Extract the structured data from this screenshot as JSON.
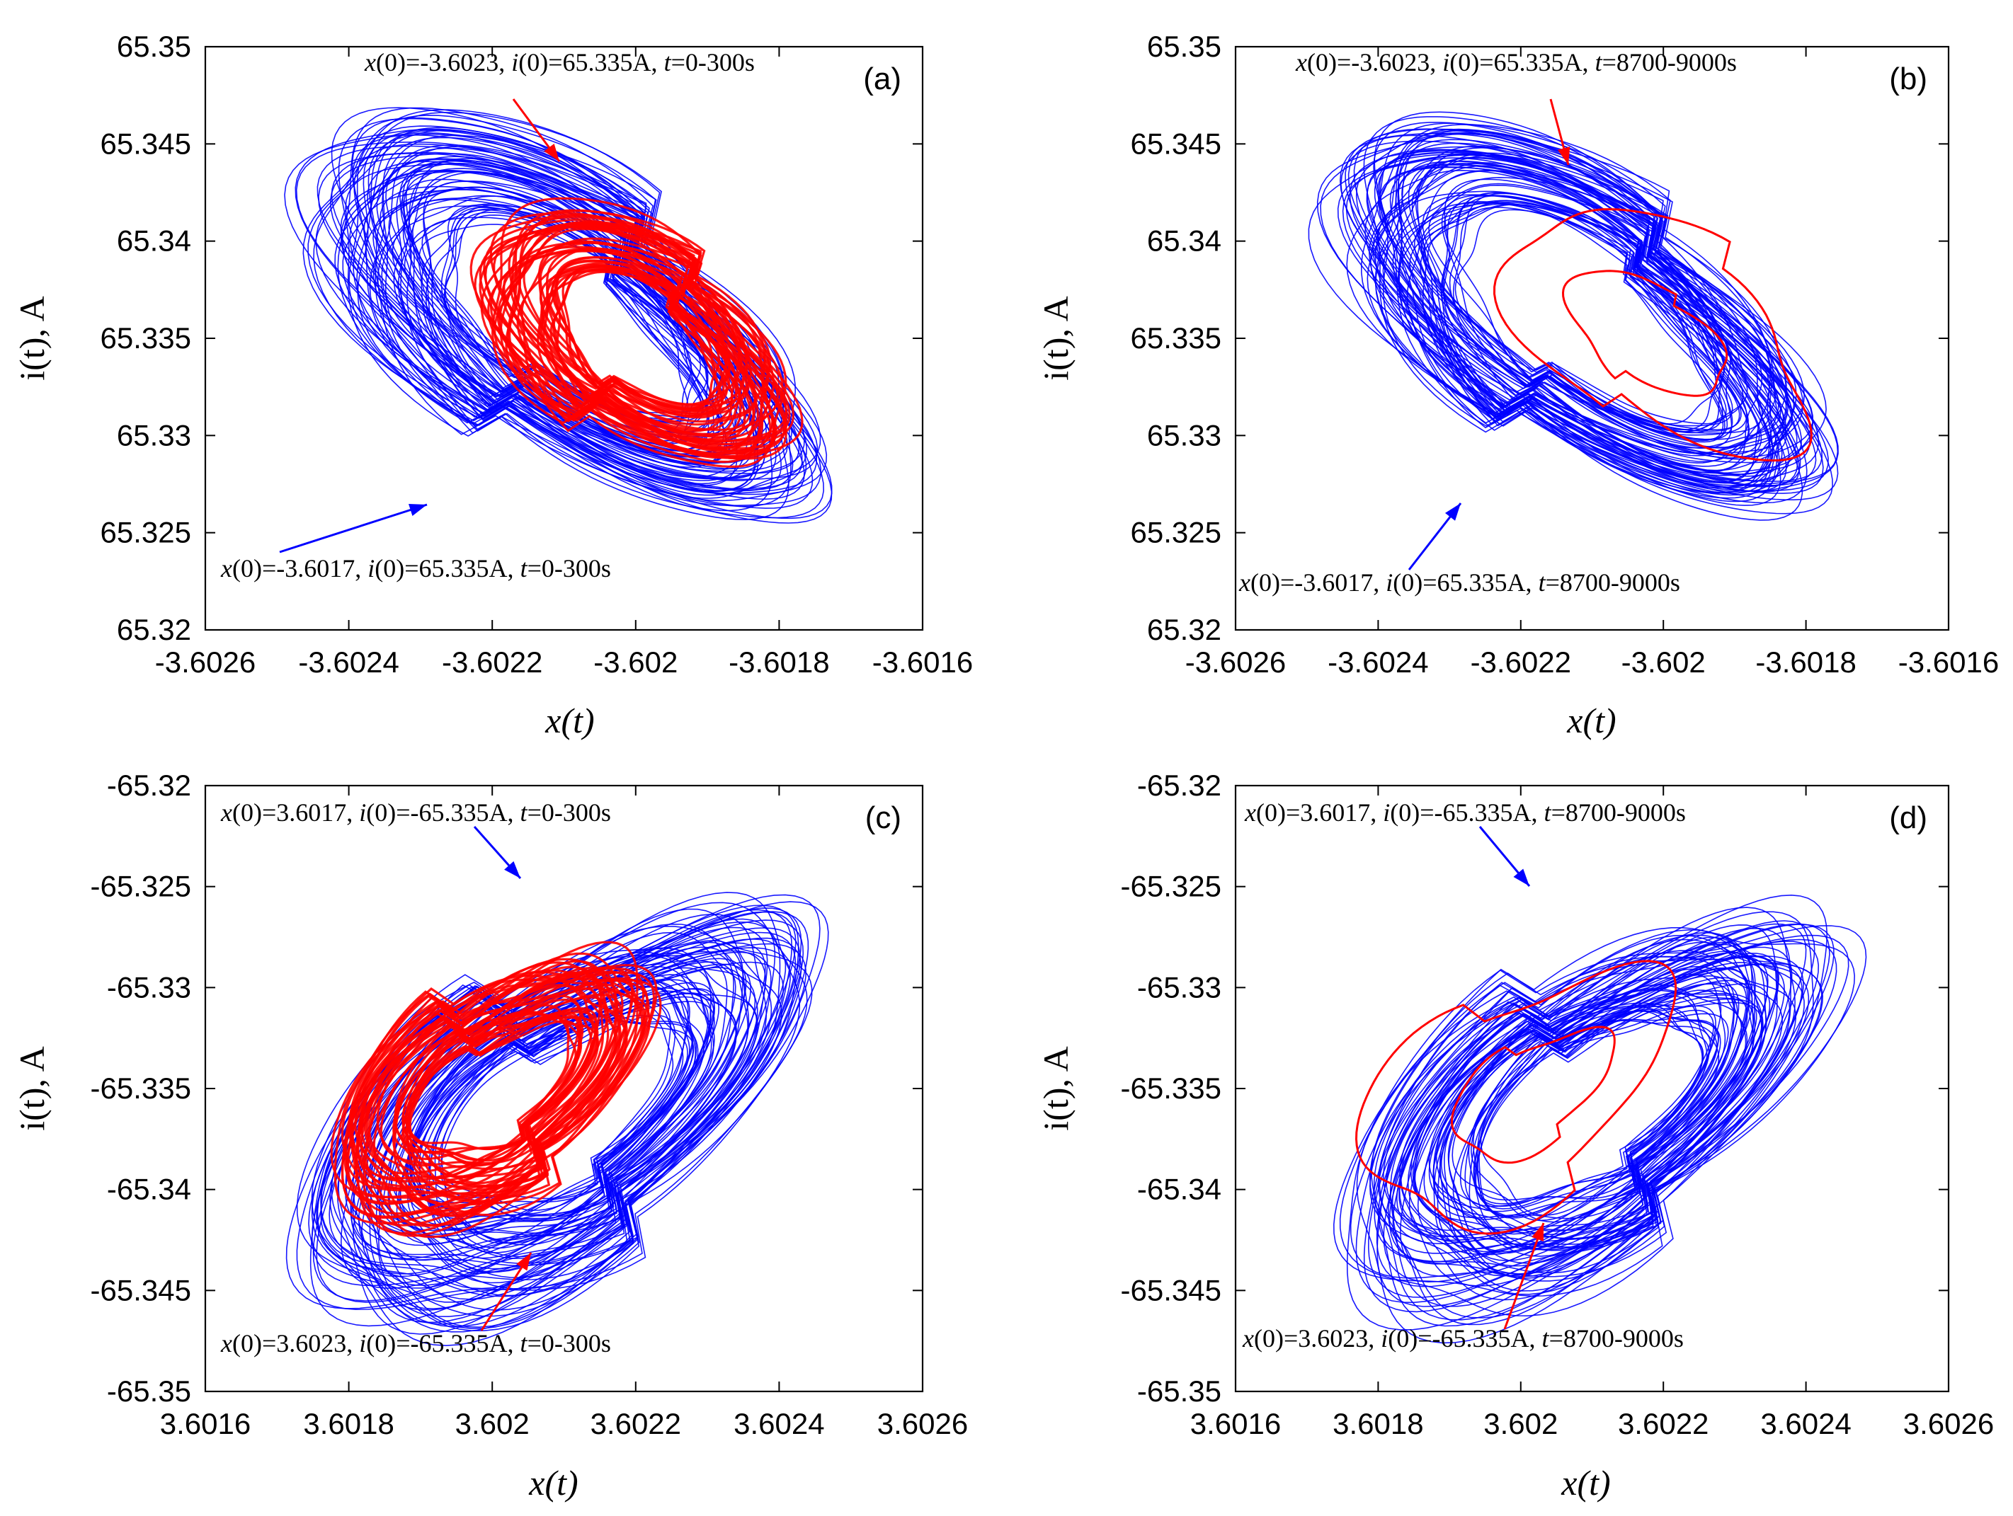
{
  "chart_data": [
    {
      "type": "line",
      "panel_label": "(a)",
      "xlabel": "x(t)",
      "ylabel": "i(t), A",
      "xlim": [
        -3.6026,
        -3.6016
      ],
      "ylim": [
        65.32,
        65.35
      ],
      "x_tick_labels": [
        "-3.6026",
        "-3.6024",
        "-3.6022",
        "-3.602",
        "-3.6018",
        "-3.6016"
      ],
      "y_tick_labels": [
        "65.32",
        "65.325",
        "65.33",
        "65.335",
        "65.34",
        "65.345",
        "65.35"
      ],
      "series": [
        {
          "name": "x(0)=-3.6017, i(0)=65.335A, t=0-300s",
          "color": "#0000ff",
          "kind": "chaotic attractor",
          "outer": {
            "xmin": -3.60252,
            "xmax": -3.60167,
            "ymin": 65.3248,
            "ymax": 65.3469
          },
          "hole": {
            "xmin": -3.60237,
            "xmax": -3.60196,
            "ymin": 65.3312,
            "ymax": 65.3405
          }
        },
        {
          "name": "x(0)=-3.6023, i(0)=65.335A, t=0-300s",
          "color": "#ff0000",
          "kind": "transient trajectory",
          "outer": {
            "xmin": -3.60222,
            "xmax": -3.60177,
            "ymin": 65.3266,
            "ymax": 65.3431
          },
          "hole": {
            "xmin": -3.60217,
            "xmax": -3.60197,
            "ymin": 65.3313,
            "ymax": 65.3396
          }
        }
      ],
      "annotations": [
        {
          "x0": "-3.6023",
          "i0": "65.335A",
          "t": "0-300s",
          "color": "#ff0000"
        },
        {
          "x0": "-3.6017",
          "i0": "65.335A",
          "t": "0-300s",
          "color": "#0000ff"
        }
      ]
    },
    {
      "type": "line",
      "panel_label": "(b)",
      "xlabel": "x(t)",
      "ylabel": "i(t), A",
      "xlim": [
        -3.6026,
        -3.6016
      ],
      "ylim": [
        65.32,
        65.35
      ],
      "x_tick_labels": [
        "-3.6026",
        "-3.6024",
        "-3.6022",
        "-3.602",
        "-3.6018",
        "-3.6016"
      ],
      "y_tick_labels": [
        "65.32",
        "65.325",
        "65.33",
        "65.335",
        "65.34",
        "65.345",
        "65.35"
      ],
      "series": [
        {
          "name": "x(0)=-3.6017, i(0)=65.335A, t=8700-9000s",
          "color": "#0000ff",
          "kind": "chaotic attractor",
          "outer": {
            "xmin": -3.60253,
            "xmax": -3.60169,
            "ymin": 65.3249,
            "ymax": 65.3469
          },
          "hole": {
            "xmin": -3.60238,
            "xmax": -3.60196,
            "ymin": 65.3312,
            "ymax": 65.3406
          }
        },
        {
          "name": "x(0)=-3.6023, i(0)=65.335A, t=8700-9000s",
          "color": "#ff0000",
          "kind": "period-1 limit cycle",
          "outer": {
            "xmin": -3.60222,
            "xmax": -3.60178,
            "ymin": 65.3273,
            "ymax": 65.343
          },
          "hole": {
            "xmin": -3.60216,
            "xmax": -3.60198,
            "ymin": 65.3315,
            "ymax": 65.3394
          }
        }
      ],
      "annotations": [
        {
          "x0": "-3.6023",
          "i0": "65.335A",
          "t": "8700-9000s",
          "color": "#ff0000"
        },
        {
          "x0": "-3.6017",
          "i0": "65.335A",
          "t": "8700-9000s",
          "color": "#0000ff"
        }
      ]
    },
    {
      "type": "line",
      "panel_label": "(c)",
      "xlabel": "x(t)",
      "ylabel": "i(t), A",
      "xlim": [
        3.6016,
        3.6026
      ],
      "ylim": [
        -65.35,
        -65.32
      ],
      "x_tick_labels": [
        "3.6016",
        "3.6018",
        "3.602",
        "3.6022",
        "3.6024",
        "3.6026"
      ],
      "y_tick_labels": [
        "-65.35",
        "-65.345",
        "-65.34",
        "-65.335",
        "-65.33",
        "-65.325",
        "-65.32"
      ],
      "series": [
        {
          "name": "x(0)=3.6017, i(0)=-65.335A, t=0-300s",
          "color": "#0000ff",
          "kind": "chaotic attractor",
          "outer": {
            "xmin": 3.60167,
            "xmax": 3.60252,
            "ymin": -65.3474,
            "ymax": -65.3248
          },
          "hole": {
            "xmin": 3.60203,
            "xmax": 3.60237,
            "ymin": -65.3406,
            "ymax": -65.3313
          }
        },
        {
          "name": "x(0)=3.6023, i(0)=-65.335A, t=0-300s",
          "color": "#ff0000",
          "kind": "transient trajectory",
          "outer": {
            "xmin": 3.60178,
            "xmax": 3.60223,
            "ymin": -65.3432,
            "ymax": -65.3266
          },
          "hole": {
            "xmin": 3.60203,
            "xmax": 3.60221,
            "ymin": -65.3396,
            "ymax": -65.3313
          }
        }
      ],
      "annotations": [
        {
          "x0": "3.6017",
          "i0": "-65.335A",
          "t": "0-300s",
          "color": "#0000ff"
        },
        {
          "x0": "3.6023",
          "i0": "-65.335A",
          "t": "0-300s",
          "color": "#ff0000"
        }
      ]
    },
    {
      "type": "line",
      "panel_label": "(d)",
      "xlabel": "x(t)",
      "ylabel": "i(t), A",
      "xlim": [
        3.6016,
        3.6026
      ],
      "ylim": [
        -65.35,
        -65.32
      ],
      "x_tick_labels": [
        "3.6016",
        "3.6018",
        "3.602",
        "3.6022",
        "3.6024",
        "3.6026"
      ],
      "y_tick_labels": [
        "-65.35",
        "-65.345",
        "-65.34",
        "-65.335",
        "-65.33",
        "-65.325",
        "-65.32"
      ],
      "series": [
        {
          "name": "x(0)=3.6017, i(0)=-65.335A, t=8700-9000s",
          "color": "#0000ff",
          "kind": "chaotic attractor",
          "outer": {
            "xmin": 3.60168,
            "xmax": 3.60252,
            "ymin": -65.3469,
            "ymax": -65.3249
          },
          "hole": {
            "xmin": 3.60204,
            "xmax": 3.60238,
            "ymin": -65.3406,
            "ymax": -65.3312
          }
        },
        {
          "name": "x(0)=3.6023, i(0)=-65.335A, t=8700-9000s",
          "color": "#ff0000",
          "kind": "period-1 limit cycle",
          "outer": {
            "xmin": 3.60178,
            "xmax": 3.60222,
            "ymin": -65.343,
            "ymax": -65.3273
          },
          "hole": {
            "xmin": 3.60202,
            "xmax": 3.6022,
            "ymin": -65.3394,
            "ymax": -65.3315
          }
        }
      ],
      "annotations": [
        {
          "x0": "3.6017",
          "i0": "-65.335A",
          "t": "8700-9000s",
          "color": "#0000ff"
        },
        {
          "x0": "3.6023",
          "i0": "-65.335A",
          "t": "8700-9000s",
          "color": "#ff0000"
        }
      ]
    }
  ]
}
